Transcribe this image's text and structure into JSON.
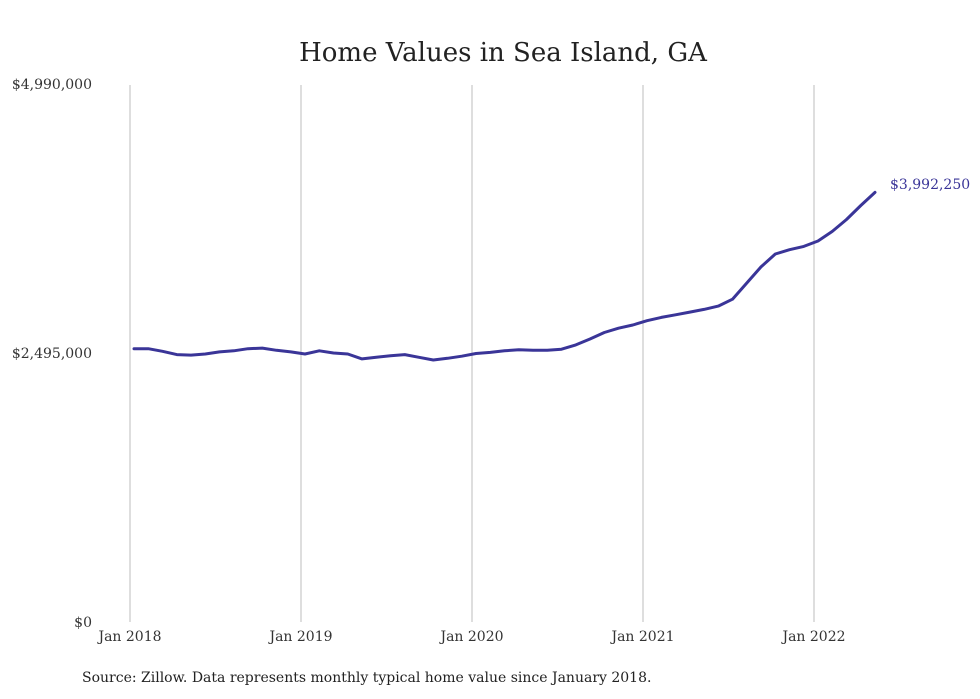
{
  "chart_data": {
    "type": "line",
    "title": "Home Values in Sea Island, GA",
    "source": "Source: Zillow. Data represents monthly typical home value since January 2018.",
    "ylim": [
      0,
      4990000
    ],
    "y_ticks": [
      "$0",
      "$2,495,000",
      "$4,990,000"
    ],
    "x_ticks": [
      "Jan 2018",
      "Jan 2019",
      "Jan 2020",
      "Jan 2021",
      "Jan 2022"
    ],
    "grid": "vertical lines at each year",
    "line_color": "#3a3598",
    "end_label": "$3,992,250",
    "series": [
      {
        "x": [
          "2018-01",
          "2018-02",
          "2018-03",
          "2018-04",
          "2018-05",
          "2018-06",
          "2018-07",
          "2018-08",
          "2018-09",
          "2018-10",
          "2018-11",
          "2018-12",
          "2019-01",
          "2019-02",
          "2019-03",
          "2019-04",
          "2019-05",
          "2019-06",
          "2019-07",
          "2019-08",
          "2019-09",
          "2019-10",
          "2019-11",
          "2019-12",
          "2020-01",
          "2020-02",
          "2020-03",
          "2020-04",
          "2020-05",
          "2020-06",
          "2020-07",
          "2020-08",
          "2020-09",
          "2020-10",
          "2020-11",
          "2020-12",
          "2021-01",
          "2021-02",
          "2021-03",
          "2021-04",
          "2021-05",
          "2021-06",
          "2021-07",
          "2021-08",
          "2021-09",
          "2021-10",
          "2021-11",
          "2021-12",
          "2022-01",
          "2022-02",
          "2022-03",
          "2022-04",
          "2022-05"
        ],
        "values": [
          2540000,
          2540000,
          2515000,
          2485000,
          2480000,
          2490000,
          2510000,
          2520000,
          2540000,
          2545000,
          2525000,
          2510000,
          2490000,
          2520000,
          2500000,
          2490000,
          2445000,
          2460000,
          2475000,
          2485000,
          2460000,
          2435000,
          2450000,
          2470000,
          2495000,
          2505000,
          2520000,
          2530000,
          2525000,
          2525000,
          2535000,
          2575000,
          2630000,
          2690000,
          2730000,
          2760000,
          2800000,
          2830000,
          2855000,
          2880000,
          2905000,
          2935000,
          3000000,
          3150000,
          3300000,
          3420000,
          3460000,
          3490000,
          3540000,
          3630000,
          3740000,
          3870000,
          3992250
        ]
      }
    ]
  }
}
